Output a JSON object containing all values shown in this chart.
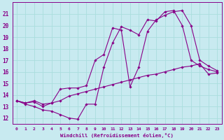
{
  "xlabel": "Windchill (Refroidissement éolien,°C)",
  "xlim": [
    -0.5,
    23.5
  ],
  "ylim": [
    11.5,
    22.0
  ],
  "yticks": [
    12,
    13,
    14,
    15,
    16,
    17,
    18,
    19,
    20,
    21
  ],
  "xticks": [
    0,
    1,
    2,
    3,
    4,
    5,
    6,
    7,
    8,
    9,
    10,
    11,
    12,
    13,
    14,
    15,
    16,
    17,
    18,
    19,
    20,
    21,
    22,
    23
  ],
  "bg_color": "#c8eaf0",
  "line_color": "#880088",
  "grid_color": "#aadddd",
  "curve1_x": [
    0,
    1,
    2,
    3,
    4,
    5,
    6,
    7,
    8,
    9,
    10,
    11,
    12,
    13,
    14,
    15,
    16,
    17,
    18,
    19,
    20,
    21,
    22,
    23
  ],
  "curve1_y": [
    13.5,
    13.2,
    13.0,
    12.7,
    12.6,
    12.3,
    12.0,
    11.9,
    13.2,
    13.2,
    16.4,
    18.5,
    19.9,
    19.6,
    19.2,
    20.5,
    20.4,
    21.2,
    21.3,
    20.0,
    17.0,
    16.5,
    16.2,
    16.0
  ],
  "curve2_x": [
    0,
    1,
    2,
    3,
    4,
    5,
    6,
    7,
    8,
    9,
    10,
    11,
    12,
    13,
    14,
    15,
    16,
    17,
    18,
    19,
    20,
    21,
    22,
    23
  ],
  "curve2_y": [
    13.5,
    13.3,
    13.5,
    13.2,
    13.3,
    13.5,
    13.9,
    14.1,
    14.3,
    14.5,
    14.7,
    14.9,
    15.1,
    15.3,
    15.5,
    15.7,
    15.8,
    16.0,
    16.2,
    16.4,
    16.5,
    16.7,
    15.8,
    15.9
  ],
  "curve3_x": [
    0,
    1,
    2,
    3,
    4,
    5,
    6,
    7,
    8,
    9,
    10,
    11,
    12,
    13,
    14,
    15,
    16,
    17,
    18,
    19,
    20,
    21,
    22,
    23
  ],
  "curve3_y": [
    13.5,
    13.3,
    13.4,
    13.0,
    13.3,
    14.5,
    14.6,
    14.6,
    14.8,
    17.0,
    17.5,
    19.8,
    19.6,
    14.7,
    16.4,
    19.5,
    20.5,
    20.9,
    21.2,
    21.3,
    20.0,
    17.0,
    16.5,
    16.1
  ]
}
